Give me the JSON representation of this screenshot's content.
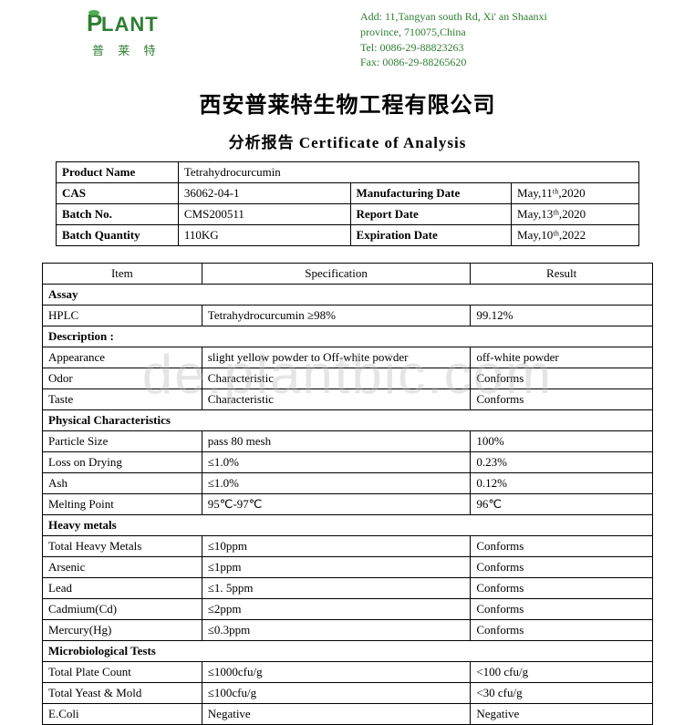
{
  "header": {
    "logo_main": "PLANT",
    "logo_sub": "普 莱 特",
    "contact_lines": [
      "Add: 11,Tangyan south Rd, Xi' an Shaanxi",
      "province, 710075,China",
      "Tel: 0086-29-88823263",
      "Fax: 0086-29-88265620"
    ]
  },
  "company": "西安普莱特生物工程有限公司",
  "subtitle": "分析报告 Certificate  of  Analysis",
  "info": {
    "rows": [
      {
        "label": "Product Name",
        "value": "Tetrahydrocurcumin",
        "label2": "",
        "value2": ""
      },
      {
        "label": "CAS",
        "value": "36062-04-1",
        "label2": "Manufacturing Date",
        "value2": "May,11ᵗʰ,2020"
      },
      {
        "label": "Batch No.",
        "value": "CMS200511",
        "label2": "Report Date",
        "value2": "May,13ᵗʰ,2020"
      },
      {
        "label": "Batch Quantity",
        "value": "110KG",
        "label2": "Expiration Date",
        "value2": "May,10ᵗʰ,2022"
      }
    ]
  },
  "spec": {
    "headers": [
      "Item",
      "Specification",
      "Result"
    ],
    "sections": [
      {
        "title": "Assay",
        "rows": [
          {
            "item": "HPLC",
            "spec": "Tetrahydrocurcumin ≥98%",
            "result": "99.12%"
          }
        ]
      },
      {
        "title": "Description :",
        "rows": [
          {
            "item": "Appearance",
            "spec": " slight yellow powder to Off-white powder",
            "result": "off-white powder"
          },
          {
            "item": "Odor",
            "spec": "Characteristic",
            "result": "Conforms"
          },
          {
            "item": "Taste",
            "spec": "Characteristic",
            "result": "Conforms"
          }
        ]
      },
      {
        "title": "Physical Characteristics",
        "rows": [
          {
            "item": "Particle Size",
            "spec": "pass 80 mesh",
            "result": "100%"
          },
          {
            "item": "Loss on Drying",
            "spec": "≤1.0%",
            "result": "0.23%"
          },
          {
            "item": "Ash",
            "spec": "≤1.0%",
            "result": "0.12%"
          },
          {
            "item": "Melting Point",
            "spec": "95℃-97℃",
            "result": "96℃"
          }
        ]
      },
      {
        "title": "Heavy metals",
        "rows": [
          {
            "item": "Total Heavy Metals",
            "spec": "≤10ppm",
            "result": "Conforms"
          },
          {
            "item": "Arsenic",
            "spec": "≤1ppm",
            "result": "Conforms"
          },
          {
            "item": "Lead",
            "spec": "≤1. 5ppm",
            "result": "Conforms"
          },
          {
            "item": "Cadmium(Cd)",
            "spec": "≤2ppm",
            "result": "Conforms"
          },
          {
            "item": "Mercury(Hg)",
            "spec": "≤0.3ppm",
            "result": "Conforms"
          }
        ]
      },
      {
        "title": "Microbiological Tests",
        "rows": [
          {
            "item": "Total Plate Count",
            "spec": "≤1000cfu/g",
            "result": "<100 cfu/g"
          },
          {
            "item": "Total Yeast & Mold",
            "spec": "≤100cfu/g",
            "result": "<30 cfu/g"
          },
          {
            "item": "E.Coli",
            "spec": "Negative",
            "result": "Negative"
          }
        ]
      }
    ]
  },
  "watermark": "de.plantbic.com"
}
